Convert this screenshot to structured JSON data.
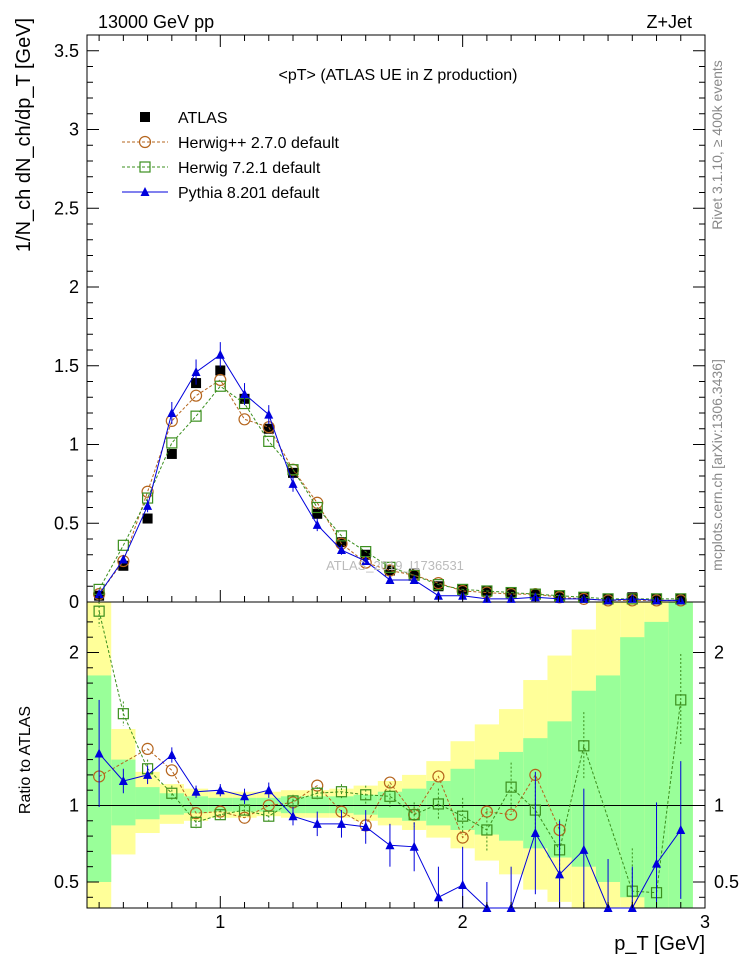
{
  "header": {
    "left": "13000 GeV pp",
    "right": "Z+Jet"
  },
  "plot_title": "<pT> (ATLAS UE in Z production)",
  "watermark": "ATLAS_2019_I1736531",
  "side_text": {
    "rivet": "Rivet 3.1.10, ≥ 400k events",
    "mcplots": "mcplots.cern.ch [arXiv:1306.3436]"
  },
  "colors": {
    "atlas": "#000000",
    "herwigpp": "#b5651d",
    "herwig7": "#3b8f1e",
    "pythia": "#0000dd",
    "band_inner": "#99ff99",
    "band_outer": "#ffff99"
  },
  "chart_data": [
    {
      "type": "line",
      "panel": "main",
      "ylabel": "1/N_ch dN_ch/dp_T [GeV]",
      "ylim": [
        0,
        3.6
      ],
      "yticks": [
        "0",
        "0.5",
        "1",
        "1.5",
        "2",
        "2.5",
        "3",
        "3.5"
      ],
      "xlim": [
        0.45,
        3.0
      ],
      "legend_placement": "top-left",
      "x": [
        0.5,
        0.6,
        0.7,
        0.8,
        0.9,
        1.0,
        1.1,
        1.2,
        1.3,
        1.4,
        1.5,
        1.6,
        1.7,
        1.8,
        1.9,
        2.0,
        2.1,
        2.2,
        2.3,
        2.4,
        2.5,
        2.6,
        2.7,
        2.8,
        2.9
      ],
      "series": [
        {
          "name": "ATLAS",
          "marker": "square-filled",
          "values": [
            0.04,
            0.23,
            0.53,
            0.94,
            1.39,
            1.47,
            1.29,
            1.1,
            0.82,
            0.56,
            0.38,
            0.3,
            0.2,
            0.18,
            0.1,
            0.08,
            0.07,
            0.06,
            0.05,
            0.04,
            0.03,
            0.02,
            0.03,
            0.02,
            0.02
          ]
        },
        {
          "name": "Herwig++ 2.7.0 default",
          "marker": "circle-open",
          "style": "dashed",
          "values": [
            0.05,
            0.26,
            0.7,
            1.15,
            1.31,
            1.41,
            1.16,
            1.11,
            0.84,
            0.63,
            0.37,
            0.25,
            0.2,
            0.17,
            0.12,
            0.07,
            0.06,
            0.05,
            0.05,
            0.03,
            0.02,
            0.01,
            0.01,
            0.01,
            0.01
          ]
        },
        {
          "name": "Herwig 7.2.1 default",
          "marker": "square-open",
          "style": "dashed",
          "values": [
            0.08,
            0.36,
            0.66,
            1.01,
            1.18,
            1.37,
            1.26,
            1.02,
            0.84,
            0.6,
            0.42,
            0.32,
            0.22,
            0.17,
            0.11,
            0.08,
            0.07,
            0.06,
            0.05,
            0.04,
            0.03,
            0.02,
            0.02,
            0.02,
            0.02
          ]
        },
        {
          "name": "Pythia 8.201 default",
          "marker": "triangle-filled",
          "style": "solid",
          "values": [
            0.05,
            0.27,
            0.61,
            1.2,
            1.46,
            1.57,
            1.32,
            1.19,
            0.75,
            0.49,
            0.33,
            0.26,
            0.14,
            0.14,
            0.04,
            0.04,
            0.02,
            0.02,
            0.03,
            0.02,
            0.02,
            0.01,
            0.02,
            0.01,
            0.01
          ],
          "errors": [
            0.01,
            0.02,
            0.04,
            0.07,
            0.08,
            0.08,
            0.07,
            0.06,
            0.05,
            0.04,
            0.03,
            0.02,
            0.02,
            0.02,
            0.01,
            0.01,
            0.01,
            0.01,
            0.01,
            0.01,
            0.01,
            0.01,
            0.01,
            0.01,
            0.01
          ]
        }
      ]
    },
    {
      "type": "line",
      "panel": "ratio",
      "ylabel": "Ratio to ATLAS",
      "xlabel": "p_T [GeV]",
      "ylim": [
        0.33,
        2.33
      ],
      "yticks": [
        "0.5",
        "1",
        "2"
      ],
      "xlim": [
        0.45,
        3.0
      ],
      "xticks": [
        "1",
        "2",
        "3"
      ],
      "reference_line": 1,
      "x": [
        0.5,
        0.6,
        0.7,
        0.8,
        0.9,
        1.0,
        1.1,
        1.2,
        1.3,
        1.4,
        1.5,
        1.6,
        1.7,
        1.8,
        1.9,
        2.0,
        2.1,
        2.2,
        2.3,
        2.4,
        2.5,
        2.6,
        2.7,
        2.8,
        2.9
      ],
      "bands": {
        "inner_low": [
          0.5,
          0.87,
          0.91,
          0.94,
          0.95,
          0.96,
          0.96,
          0.96,
          0.95,
          0.95,
          0.95,
          0.94,
          0.92,
          0.9,
          0.87,
          0.84,
          0.81,
          0.77,
          0.72,
          0.66,
          0.6,
          0.5,
          0.4,
          0.33,
          0.33
        ],
        "inner_high": [
          1.85,
          1.3,
          1.12,
          1.08,
          1.06,
          1.05,
          1.05,
          1.05,
          1.06,
          1.06,
          1.06,
          1.07,
          1.09,
          1.11,
          1.16,
          1.24,
          1.3,
          1.35,
          1.44,
          1.55,
          1.75,
          1.85,
          2.1,
          2.2,
          2.33
        ],
        "outer_low": [
          0.33,
          0.68,
          0.82,
          0.88,
          0.9,
          0.92,
          0.92,
          0.93,
          0.92,
          0.92,
          0.92,
          0.9,
          0.87,
          0.84,
          0.79,
          0.72,
          0.64,
          0.55,
          0.45,
          0.37,
          0.33,
          0.33,
          0.33,
          0.33,
          0.33
        ],
        "outer_high": [
          2.33,
          1.5,
          1.22,
          1.14,
          1.11,
          1.09,
          1.09,
          1.09,
          1.1,
          1.1,
          1.11,
          1.13,
          1.16,
          1.2,
          1.29,
          1.42,
          1.53,
          1.63,
          1.82,
          1.98,
          2.15,
          2.33,
          2.33,
          2.33,
          2.33
        ]
      },
      "series": [
        {
          "name": "Herwig++ 2.7.0 default",
          "marker": "circle-open",
          "style": "dashed",
          "values": [
            1.19,
            null,
            1.37,
            1.23,
            0.95,
            0.96,
            0.92,
            1.0,
            1.02,
            1.13,
            0.96,
            0.87,
            1.15,
            0.94,
            1.19,
            0.79,
            0.96,
            0.94,
            1.2,
            0.84,
            null,
            null,
            null,
            null,
            null
          ]
        },
        {
          "name": "Herwig 7.2.1 default",
          "marker": "square-open",
          "style": "dashed",
          "values": [
            2.27,
            1.6,
            1.24,
            1.08,
            0.89,
            0.94,
            0.97,
            0.93,
            1.03,
            1.08,
            1.09,
            1.07,
            1.06,
            0.94,
            1.01,
            0.93,
            0.84,
            1.12,
            0.97,
            0.71,
            1.39,
            null,
            0.44,
            0.43,
            1.69
          ],
          "errors": [
            0.1,
            0.08,
            0.06,
            0.05,
            0.04,
            0.03,
            0.03,
            0.03,
            0.04,
            0.04,
            0.05,
            0.06,
            0.07,
            0.08,
            0.1,
            0.12,
            0.14,
            0.16,
            0.18,
            0.2,
            0.22,
            0.25,
            0.28,
            0.3,
            0.3
          ]
        },
        {
          "name": "Pythia 8.201 default",
          "marker": "triangle-filled",
          "style": "solid",
          "values": [
            1.34,
            1.16,
            1.2,
            1.33,
            1.09,
            1.1,
            1.06,
            1.1,
            0.93,
            0.88,
            0.88,
            0.86,
            0.74,
            0.73,
            0.4,
            0.48,
            0.2,
            0.25,
            0.82,
            0.55,
            0.71,
            0.2,
            0.1,
            0.62,
            0.84
          ],
          "errors": [
            0.35,
            0.08,
            0.06,
            0.05,
            0.04,
            0.04,
            0.05,
            0.05,
            0.06,
            0.08,
            0.09,
            0.11,
            0.14,
            0.16,
            0.2,
            0.25,
            0.3,
            0.35,
            0.4,
            0.35,
            0.4,
            0.45,
            0.5,
            0.4,
            0.45
          ]
        }
      ]
    }
  ]
}
